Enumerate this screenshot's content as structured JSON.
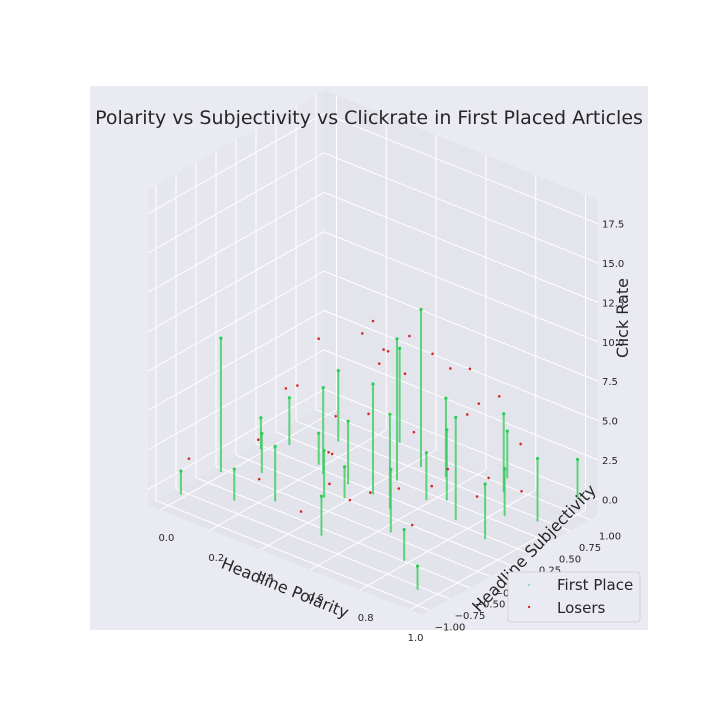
{
  "chart_data": {
    "type": "scatter",
    "projection": "3d",
    "title": "Polarity vs Subjectivity vs Clickrate in First Placed Articles",
    "xlabel": "Headline Polarity",
    "ylabel": "Headline Subjectivity",
    "zlabel": "Click Rate",
    "xlim": [
      -0.05,
      1.05
    ],
    "ylim": [
      -1.1,
      1.1
    ],
    "zlim": [
      -1.0,
      19.0
    ],
    "x_ticks": [
      "0.0",
      "0.2",
      "0.4",
      "0.6",
      "0.8",
      "1.0"
    ],
    "y_ticks": [
      "−1.00",
      "−0.75",
      "−0.50",
      "−0.25",
      "0.00",
      "0.25",
      "0.50",
      "0.75",
      "1.00"
    ],
    "z_ticks": [
      "0.0",
      "2.5",
      "5.0",
      "7.5",
      "10.0",
      "12.5",
      "15.0",
      "17.5"
    ],
    "grid": true,
    "legend_position": "lower-right",
    "series": [
      {
        "name": "First Place",
        "color": "#2ecc55",
        "marker": "small point",
        "stems": true,
        "x": [
          0.05,
          0.05,
          0.05,
          0.1,
          0.15,
          0.2,
          0.25,
          0.3,
          0.35,
          0.4,
          0.45,
          0.5,
          0.55,
          0.6,
          0.65,
          0.7,
          0.75,
          0.8,
          0.85,
          0.9,
          0.95,
          1.0,
          1.0,
          1.0,
          0.3,
          0.5,
          0.7,
          0.4,
          0.6,
          0.2,
          0.8,
          0.5
        ],
        "y": [
          -1.0,
          -0.5,
          0.0,
          0.2,
          -0.3,
          0.5,
          0.1,
          -0.6,
          0.8,
          0.0,
          -0.2,
          0.3,
          -0.8,
          0.6,
          0.2,
          -0.4,
          0.9,
          0.1,
          -0.7,
          0.4,
          0.0,
          -1.0,
          0.5,
          1.0,
          0.0,
          0.0,
          0.3,
          -0.3,
          -0.1,
          -0.8,
          0.7,
          0.6
        ],
        "z": [
          1.5,
          8.5,
          2.0,
          3.0,
          2.5,
          4.5,
          2.0,
          3.5,
          6.0,
          4.0,
          2.0,
          9.0,
          2.5,
          5.0,
          3.0,
          4.0,
          3.0,
          6.5,
          2.0,
          3.0,
          3.5,
          1.5,
          4.0,
          2.5,
          5.5,
          7.0,
          4.5,
          3.0,
          6.0,
          2.0,
          5.0,
          10.0
        ]
      },
      {
        "name": "Losers",
        "color": "#d62728",
        "marker": "dot",
        "x": [
          0.05,
          0.1,
          0.2,
          0.3,
          0.35,
          0.4,
          0.45,
          0.5,
          0.55,
          0.6,
          0.65,
          0.7,
          0.75,
          0.8,
          0.85,
          0.9,
          0.95,
          1.0,
          0.25,
          0.45,
          0.6,
          0.7,
          0.5,
          0.4,
          0.3,
          0.8,
          0.55,
          0.35,
          0.65,
          0.5,
          0.15,
          0.9,
          0.2,
          0.6,
          0.45,
          0.75
        ],
        "y": [
          -0.9,
          0.3,
          -0.5,
          0.7,
          0.0,
          -0.2,
          0.9,
          0.4,
          -0.7,
          0.2,
          0.5,
          -0.3,
          0.8,
          0.0,
          -0.6,
          0.6,
          -0.1,
          0.3,
          0.1,
          -0.4,
          0.9,
          0.7,
          0.0,
          0.5,
          -0.8,
          -0.2,
          0.3,
          0.6,
          -0.5,
          -0.9,
          0.0,
          0.2,
          0.8,
          -0.6,
          0.1,
          0.4
        ],
        "z": [
          2.0,
          3.5,
          3.0,
          5.0,
          4.0,
          2.5,
          6.0,
          6.5,
          3.0,
          4.0,
          7.5,
          2.5,
          5.5,
          3.5,
          2.0,
          4.0,
          3.0,
          2.5,
          8.0,
          3.5,
          6.0,
          5.0,
          11.0,
          7.0,
          2.0,
          3.0,
          9.5,
          6.5,
          2.5,
          1.5,
          4.5,
          3.0,
          6.0,
          2.0,
          4.5,
          5.5
        ]
      }
    ]
  }
}
